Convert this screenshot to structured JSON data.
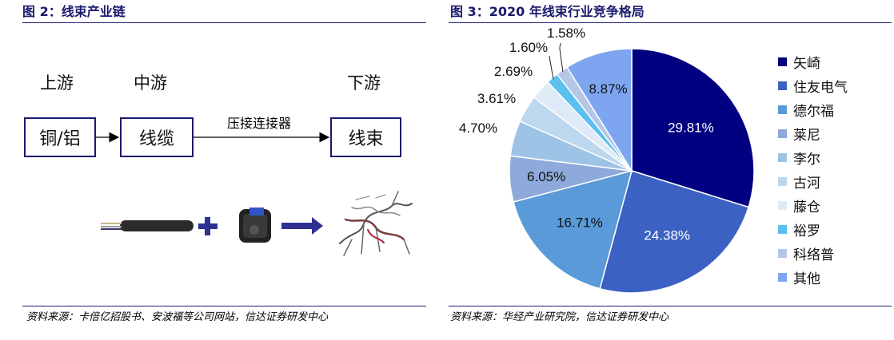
{
  "left": {
    "title": "图 2：线束产业链",
    "stages": {
      "upstream": "上游",
      "midstream": "中游",
      "downstream": "下游"
    },
    "boxes": {
      "material": "铜/铝",
      "cable": "线缆",
      "harness": "线束"
    },
    "arrow_label": "压接连接器",
    "source": "资料来源：卡倍亿招股书、安波福等公司网站，信达证券研发中心"
  },
  "right": {
    "title": "图 3：2020 年线束行业竞争格局",
    "source": "资料来源：华经产业研究院，信达证券研发中心"
  },
  "colors": {
    "title": "#1a1a6e",
    "rule": "#1a1a6e",
    "flow_arrow": "#2e3192"
  },
  "chart_data": {
    "type": "pie",
    "title": "2020 年线束行业竞争格局",
    "legend_position": "right",
    "start_angle": "12 o'clock, clockwise",
    "slices": [
      {
        "label": "矢崎",
        "value": 29.81,
        "value_label": "29.81%",
        "color": "#000080"
      },
      {
        "label": "住友电气",
        "value": 24.38,
        "value_label": "24.38%",
        "color": "#3b62c3"
      },
      {
        "label": "德尔福",
        "value": 16.71,
        "value_label": "16.71%",
        "color": "#5a9ad8"
      },
      {
        "label": "莱尼",
        "value": 6.05,
        "value_label": "6.05%",
        "color": "#8ea9db"
      },
      {
        "label": "李尔",
        "value": 4.7,
        "value_label": "4.70%",
        "color": "#9dc3e6"
      },
      {
        "label": "古河",
        "value": 3.61,
        "value_label": "3.61%",
        "color": "#bdd7ee"
      },
      {
        "label": "藤仓",
        "value": 2.69,
        "value_label": "2.69%",
        "color": "#deebf7"
      },
      {
        "label": "裕罗",
        "value": 1.6,
        "value_label": "1.60%",
        "color": "#5bc0f0"
      },
      {
        "label": "科络普",
        "value": 1.58,
        "value_label": "1.58%",
        "color": "#b4c7e7"
      },
      {
        "label": "其他",
        "value": 8.87,
        "value_label": "8.87%",
        "color": "#7ea6f0"
      }
    ]
  }
}
